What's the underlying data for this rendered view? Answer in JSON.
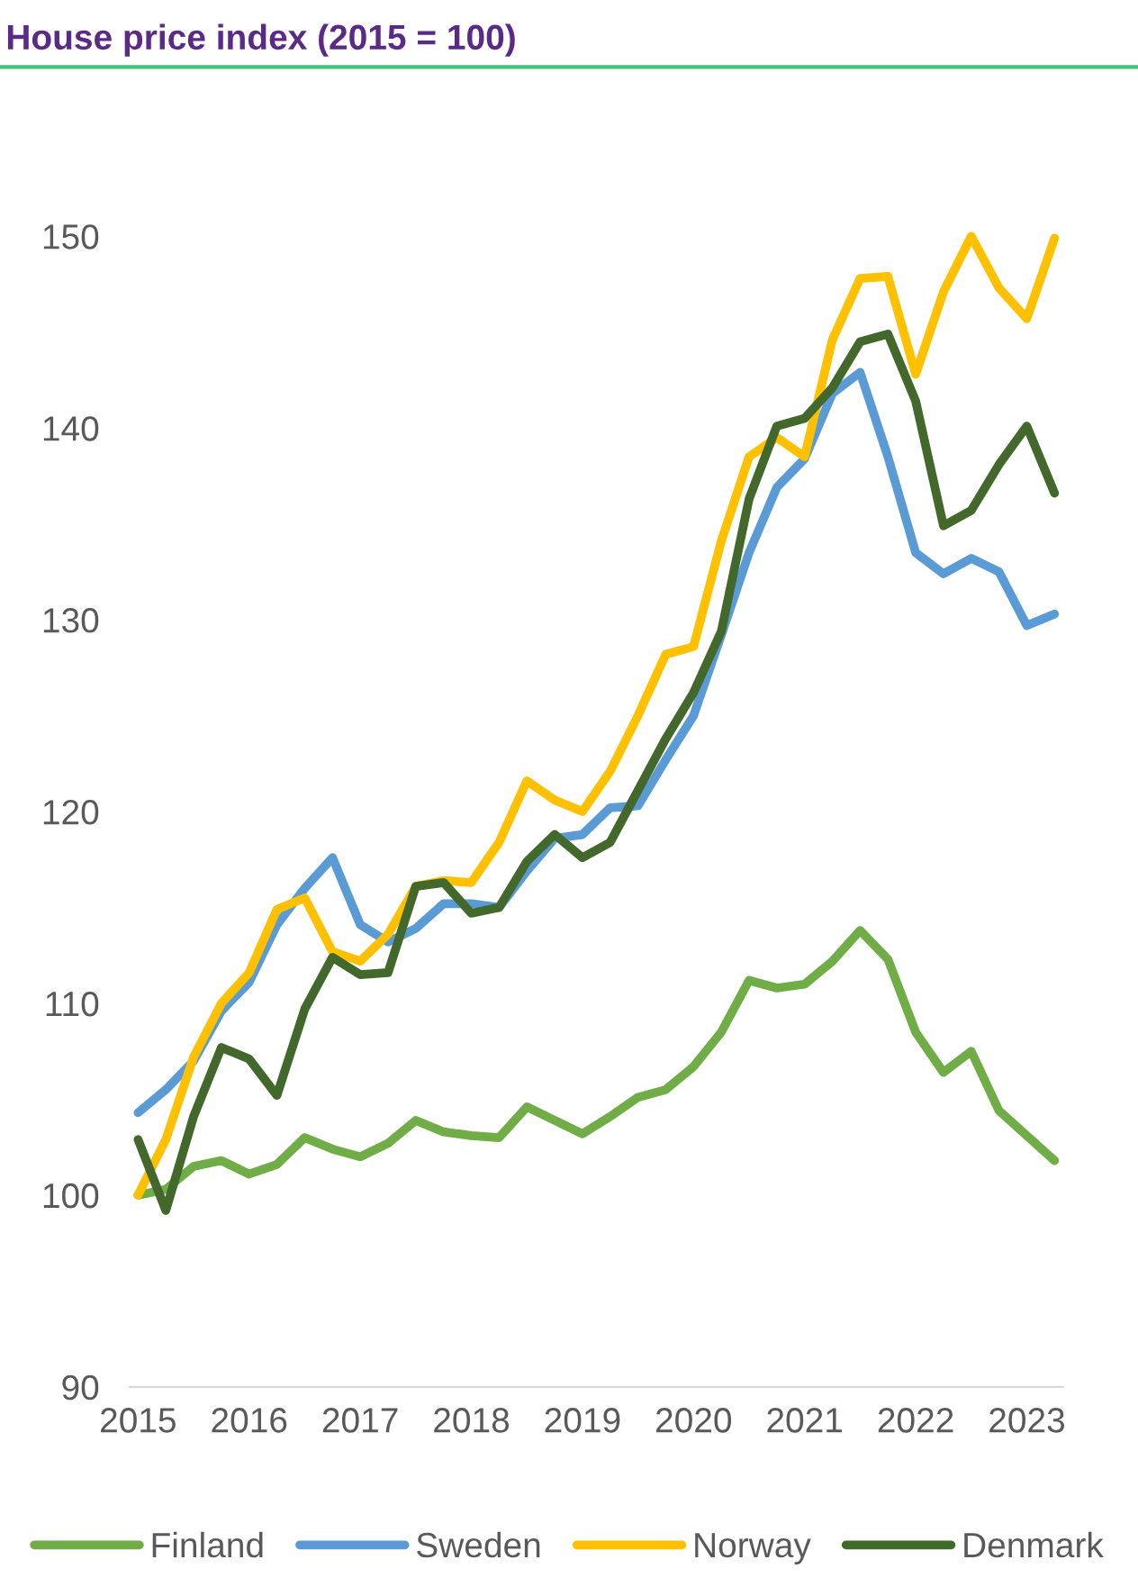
{
  "chart_data": {
    "type": "line",
    "title": "House price index (2015 = 100)",
    "categories": [
      "2015",
      null,
      null,
      null,
      "2016",
      null,
      null,
      null,
      "2017",
      null,
      null,
      null,
      "2018",
      null,
      null,
      null,
      "2019",
      null,
      null,
      null,
      "2020",
      null,
      null,
      null,
      "2021",
      null,
      null,
      null,
      "2022",
      null,
      null,
      null,
      "2023",
      null
    ],
    "series": [
      {
        "name": "Finland",
        "color": "#70ad47",
        "values": [
          100.0,
          100.3,
          101.5,
          101.8,
          101.1,
          101.6,
          103.0,
          102.4,
          102.0,
          102.7,
          103.9,
          103.3,
          103.1,
          103.0,
          104.6,
          103.9,
          103.2,
          104.1,
          105.1,
          105.5,
          106.7,
          108.5,
          111.2,
          110.8,
          111.0,
          112.2,
          113.8,
          112.3,
          108.5,
          106.4,
          107.5,
          104.4,
          103.1,
          101.8
        ]
      },
      {
        "name": "Sweden",
        "color": "#5b9bd5",
        "values": [
          104.3,
          105.5,
          107.0,
          109.6,
          111.1,
          114.1,
          116.0,
          117.6,
          114.1,
          113.2,
          113.9,
          115.2,
          115.2,
          115.0,
          116.9,
          118.6,
          118.8,
          120.2,
          120.3,
          122.7,
          125.0,
          129.2,
          133.5,
          136.9,
          138.4,
          141.8,
          142.9,
          138.5,
          133.5,
          132.4,
          133.2,
          132.5,
          129.7,
          130.3
        ]
      },
      {
        "name": "Norway",
        "color": "#ffc000",
        "values": [
          100.0,
          102.9,
          107.2,
          110.0,
          111.6,
          114.9,
          115.5,
          112.7,
          112.2,
          113.6,
          116.1,
          116.4,
          116.3,
          118.4,
          121.6,
          120.6,
          120.0,
          122.1,
          125.0,
          128.2,
          128.6,
          134.1,
          138.5,
          139.5,
          138.5,
          144.6,
          147.8,
          147.9,
          142.8,
          147.1,
          150.0,
          147.3,
          145.7,
          149.9
        ]
      },
      {
        "name": "Denmark",
        "color": "#43682b",
        "values": [
          102.9,
          99.2,
          104.1,
          107.7,
          107.1,
          105.2,
          109.7,
          112.4,
          111.5,
          111.6,
          116.1,
          116.3,
          114.7,
          115.0,
          117.4,
          118.8,
          117.6,
          118.4,
          121.1,
          123.8,
          126.2,
          129.4,
          136.3,
          140.1,
          140.5,
          142.1,
          144.5,
          144.9,
          141.4,
          134.9,
          135.7,
          138.1,
          140.1,
          136.6
        ]
      }
    ],
    "ylim": [
      90,
      150
    ],
    "yticks": [
      90,
      100,
      110,
      120,
      130,
      140,
      150
    ],
    "grid": false,
    "legend": "bottom"
  }
}
